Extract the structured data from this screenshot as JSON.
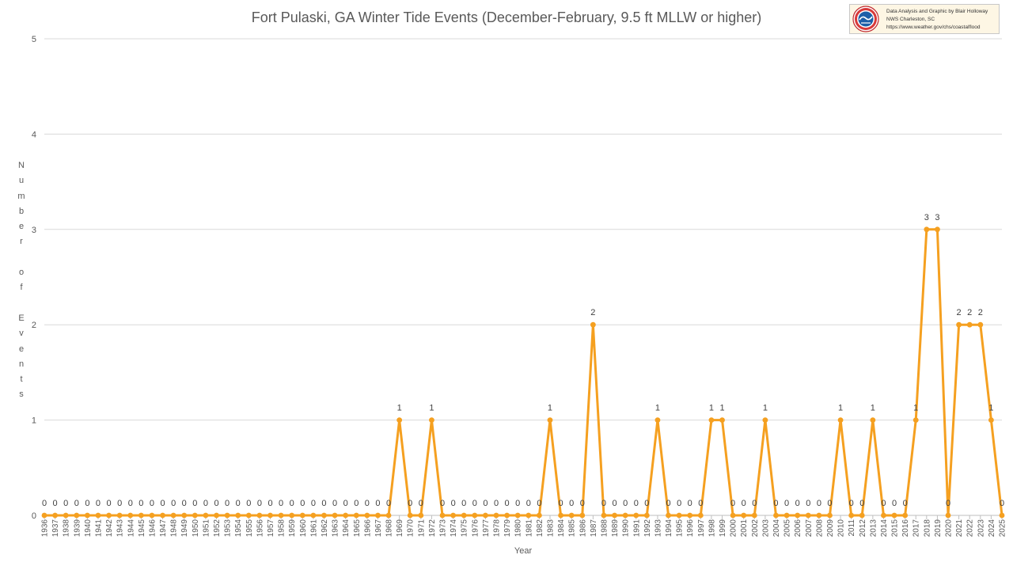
{
  "credit": {
    "line1": "Data Analysis and Graphic by Blair Holloway",
    "line2": "NWS Charleston, SC",
    "line3": "https://www.weather.gov/chs/coastalflood"
  },
  "colors": {
    "series": "#f5a020",
    "grid": "#d9d9d9",
    "axis": "#bfbfbf"
  },
  "chart_data": {
    "type": "line",
    "title": "Fort Pulaski, GA Winter Tide Events (December-February, 9.5 ft MLLW or higher)",
    "xlabel": "Year",
    "ylabel": "Number of Events",
    "ylim": [
      0,
      5
    ],
    "yticks": [
      0,
      1,
      2,
      3,
      4,
      5
    ],
    "grid": true,
    "legend": "none",
    "categories": [
      "1936",
      "1937",
      "1938",
      "1939",
      "1940",
      "1941",
      "1942",
      "1943",
      "1944",
      "1945",
      "1946",
      "1947",
      "1948",
      "1949",
      "1950",
      "1951",
      "1952",
      "1953",
      "1954",
      "1955",
      "1956",
      "1957",
      "1958",
      "1959",
      "1960",
      "1961",
      "1962",
      "1963",
      "1964",
      "1965",
      "1966",
      "1967",
      "1968",
      "1969",
      "1970",
      "1971",
      "1972",
      "1973",
      "1974",
      "1975",
      "1976",
      "1977",
      "1978",
      "1979",
      "1980",
      "1981",
      "1982",
      "1983",
      "1984",
      "1985",
      "1986",
      "1987",
      "1988",
      "1989",
      "1990",
      "1991",
      "1992",
      "1993",
      "1994",
      "1995",
      "1996",
      "1997",
      "1998",
      "1999",
      "2000",
      "2001",
      "2002",
      "2003",
      "2004",
      "2005",
      "2006",
      "2007",
      "2008",
      "2009",
      "2010",
      "2011",
      "2012",
      "2013",
      "2014",
      "2015",
      "2016",
      "2017",
      "2018",
      "2019",
      "2020",
      "2021",
      "2022",
      "2023",
      "2024",
      "2025"
    ],
    "values": [
      0,
      0,
      0,
      0,
      0,
      0,
      0,
      0,
      0,
      0,
      0,
      0,
      0,
      0,
      0,
      0,
      0,
      0,
      0,
      0,
      0,
      0,
      0,
      0,
      0,
      0,
      0,
      0,
      0,
      0,
      0,
      0,
      0,
      1,
      0,
      0,
      1,
      0,
      0,
      0,
      0,
      0,
      0,
      0,
      0,
      0,
      0,
      1,
      0,
      0,
      0,
      2,
      0,
      0,
      0,
      0,
      0,
      1,
      0,
      0,
      0,
      0,
      1,
      1,
      0,
      0,
      0,
      1,
      0,
      0,
      0,
      0,
      0,
      0,
      1,
      0,
      0,
      1,
      0,
      0,
      0,
      1,
      3,
      3,
      0,
      2,
      2,
      2,
      1,
      0
    ]
  }
}
